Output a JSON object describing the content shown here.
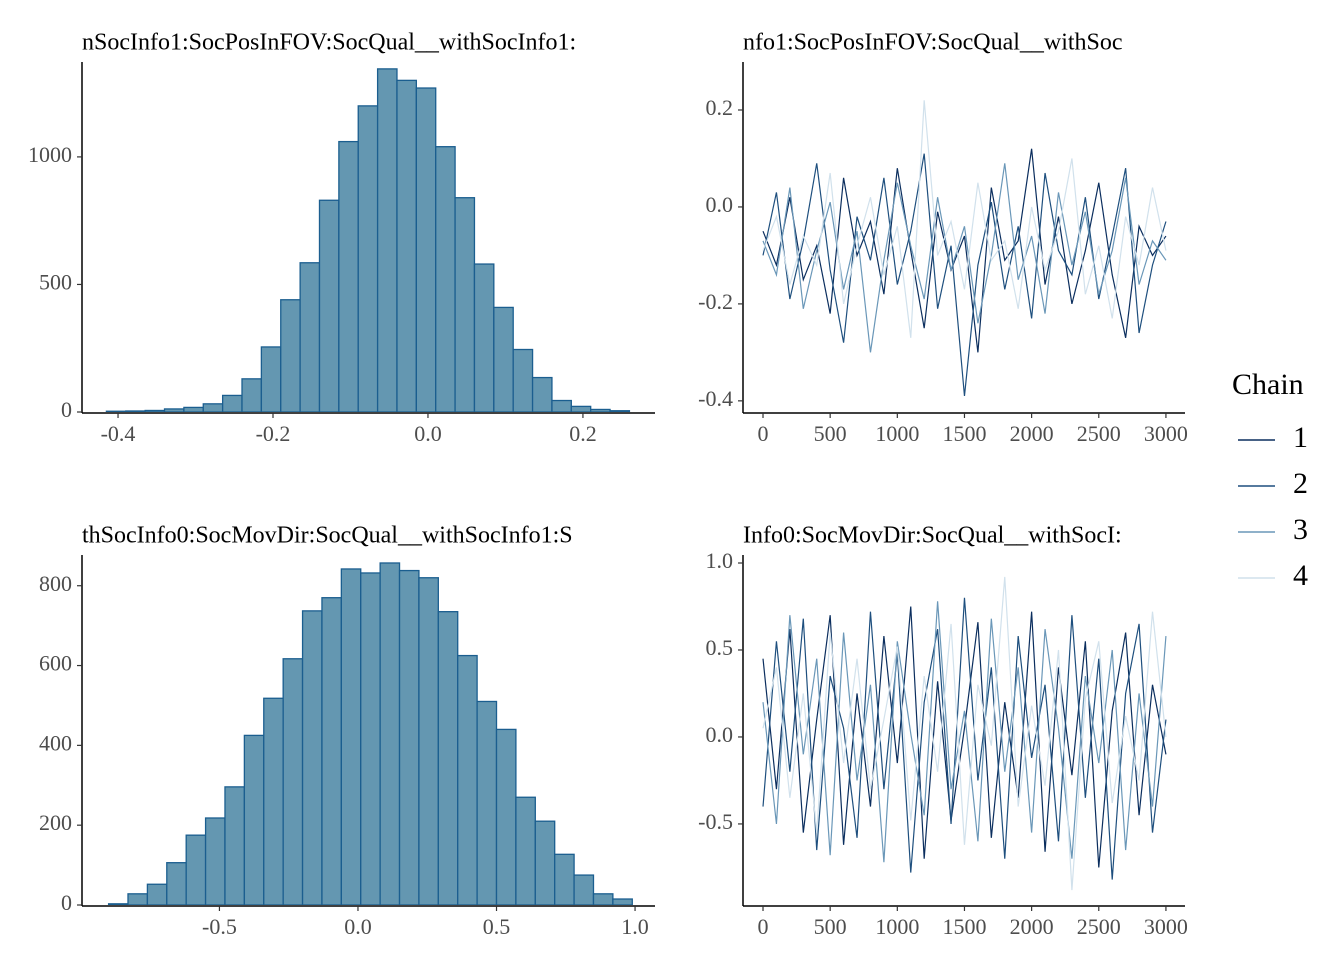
{
  "chart_data": [
    {
      "type": "histogram",
      "title": "nSocInfo1:SocPosInFOV:SocQual__withSocInfo1:",
      "color": "#6497b1",
      "edgecolor": "#1b5e8f",
      "bins": [
        -0.415,
        -0.39,
        -0.365,
        -0.34,
        -0.315,
        -0.29,
        -0.265,
        -0.24,
        -0.215,
        -0.19,
        -0.165,
        -0.14,
        -0.115,
        -0.09,
        -0.065,
        -0.04,
        -0.015,
        0.01,
        0.035,
        0.06,
        0.085,
        0.11,
        0.135,
        0.16,
        0.185,
        0.21,
        0.235,
        0.26
      ],
      "counts": [
        3,
        4,
        6,
        12,
        18,
        32,
        65,
        130,
        255,
        440,
        585,
        830,
        1060,
        1200,
        1345,
        1300,
        1270,
        1040,
        840,
        580,
        410,
        245,
        135,
        45,
        22,
        10,
        5
      ],
      "xlim": [
        -0.4465,
        0.293
      ],
      "xticks": [
        -0.4,
        -0.2,
        {
          "value": 0,
          "label": "0.0"
        },
        0.2
      ],
      "ylim": [
        0,
        1372
      ],
      "yticks": [
        0,
        500,
        1000
      ]
    },
    {
      "type": "line",
      "title": "nfo1:SocPosInFOV:SocQual__withSoc",
      "legend_title": "Chain",
      "x": [
        0,
        100,
        200,
        300,
        400,
        500,
        600,
        700,
        800,
        900,
        1000,
        1100,
        1200,
        1300,
        1400,
        1500,
        1600,
        1700,
        1800,
        1900,
        2000,
        2100,
        2200,
        2300,
        2400,
        2500,
        2600,
        2700,
        2800,
        2900,
        3000
      ],
      "series": [
        {
          "name": "1",
          "color": "#0b2e5e",
          "values": [
            -0.05,
            -0.12,
            0.02,
            -0.15,
            -0.08,
            -0.22,
            0.06,
            -0.1,
            -0.03,
            -0.18,
            0.08,
            -0.09,
            -0.25,
            -0.01,
            -0.13,
            -0.06,
            -0.3,
            0.04,
            -0.11,
            -0.07,
            0.12,
            -0.16,
            -0.02,
            -0.2,
            -0.09,
            0.05,
            -0.14,
            -0.27,
            -0.04,
            -0.1,
            -0.06
          ]
        },
        {
          "name": "2",
          "color": "#1e4f7e",
          "values": [
            -0.1,
            0.03,
            -0.19,
            -0.07,
            0.09,
            -0.13,
            -0.28,
            -0.02,
            -0.11,
            0.06,
            -0.16,
            -0.05,
            0.11,
            -0.21,
            -0.08,
            -0.39,
            -0.12,
            0.01,
            -0.17,
            -0.04,
            -0.23,
            0.07,
            -0.09,
            -0.14,
            0.02,
            -0.19,
            -0.06,
            0.08,
            -0.26,
            -0.12,
            -0.03
          ]
        },
        {
          "name": "3",
          "color": "#6a97b8",
          "values": [
            -0.07,
            -0.14,
            0.04,
            -0.21,
            -0.09,
            0.01,
            -0.17,
            -0.05,
            -0.3,
            -0.11,
            0.05,
            -0.08,
            -0.19,
            0.02,
            -0.13,
            -0.04,
            -0.24,
            -0.1,
            0.09,
            -0.15,
            -0.06,
            -0.22,
            0.03,
            -0.12,
            -0.01,
            -0.18,
            -0.09,
            0.06,
            -0.16,
            -0.07,
            -0.11
          ]
        },
        {
          "name": "4",
          "color": "#d1e1ec",
          "values": [
            -0.09,
            -0.02,
            -0.16,
            -0.06,
            -0.12,
            0.07,
            -0.2,
            -0.08,
            0.02,
            -0.14,
            -0.04,
            -0.27,
            0.22,
            -0.1,
            -0.03,
            -0.17,
            0.05,
            -0.11,
            -0.07,
            -0.21,
            0.0,
            -0.13,
            -0.05,
            0.1,
            -0.18,
            -0.08,
            -0.23,
            -0.02,
            -0.12,
            0.04,
            -0.09
          ]
        }
      ],
      "xlim": [
        -149,
        3142
      ],
      "xticks": [
        0,
        500,
        1000,
        1500,
        2000,
        2500,
        3000
      ],
      "ylim": [
        -0.423,
        0.299
      ],
      "yticks": [
        -0.4,
        -0.2,
        {
          "value": 0,
          "label": "0.0"
        },
        0.2
      ]
    },
    {
      "type": "histogram",
      "title": "thSocInfo0:SocMovDir:SocQual__withSocInfo1:S",
      "color": "#6497b1",
      "edgecolor": "#1b5e8f",
      "bins": [
        -0.9,
        -0.83,
        -0.76,
        -0.69,
        -0.62,
        -0.55,
        -0.48,
        -0.41,
        -0.34,
        -0.27,
        -0.2,
        -0.13,
        -0.06,
        0.01,
        0.08,
        0.15,
        0.22,
        0.29,
        0.36,
        0.43,
        0.5,
        0.57,
        0.64,
        0.71,
        0.78,
        0.85,
        0.92,
        0.99
      ],
      "counts": [
        3,
        28,
        52,
        106,
        175,
        218,
        296,
        425,
        518,
        617,
        737,
        770,
        842,
        832,
        857,
        838,
        820,
        735,
        625,
        510,
        440,
        270,
        210,
        127,
        75,
        28,
        15
      ],
      "xlim": [
        -0.996,
        1.072
      ],
      "xticks": [
        -0.5,
        {
          "value": 0,
          "label": "0.0"
        },
        0.5,
        {
          "value": 1,
          "label": "1.0"
        }
      ],
      "ylim": [
        0,
        877
      ],
      "yticks": [
        0,
        200,
        400,
        600,
        800
      ]
    },
    {
      "type": "line",
      "title": "Info0:SocMovDir:SocQual__withSocI:",
      "x": [
        0,
        100,
        200,
        300,
        400,
        500,
        600,
        700,
        800,
        900,
        1000,
        1100,
        1200,
        1300,
        1400,
        1500,
        1600,
        1700,
        1800,
        1900,
        2000,
        2100,
        2200,
        2300,
        2400,
        2500,
        2600,
        2700,
        2800,
        2900,
        3000
      ],
      "series": [
        {
          "name": "1",
          "color": "#0b2e5e",
          "values": [
            0.45,
            -0.3,
            0.62,
            -0.55,
            0.1,
            0.7,
            -0.62,
            0.25,
            -0.4,
            0.58,
            -0.15,
            0.75,
            -0.7,
            0.32,
            -0.48,
            0.05,
            0.66,
            -0.58,
            0.2,
            -0.35,
            0.72,
            -0.66,
            0.4,
            -0.22,
            0.55,
            -0.75,
            0.15,
            0.6,
            -0.45,
            0.3,
            -0.1
          ]
        },
        {
          "name": "2",
          "color": "#1e4f7e",
          "values": [
            -0.4,
            0.55,
            -0.2,
            0.68,
            -0.65,
            0.35,
            0.05,
            -0.58,
            0.72,
            -0.3,
            0.48,
            -0.78,
            0.2,
            0.62,
            -0.5,
            0.8,
            -0.25,
            0.4,
            -0.7,
            0.58,
            -0.12,
            0.3,
            -0.6,
            0.7,
            -0.35,
            0.45,
            -0.82,
            0.25,
            0.65,
            -0.55,
            0.1
          ]
        },
        {
          "name": "3",
          "color": "#6a97b8",
          "values": [
            0.2,
            -0.5,
            0.7,
            -0.1,
            0.45,
            -0.68,
            0.6,
            -0.25,
            0.3,
            -0.72,
            0.55,
            0.02,
            -0.45,
            0.78,
            -0.3,
            0.15,
            -0.6,
            0.68,
            -0.2,
            0.4,
            -0.55,
            0.62,
            0.05,
            -0.7,
            0.35,
            -0.15,
            0.5,
            -0.65,
            0.25,
            -0.4,
            0.58
          ]
        },
        {
          "name": "4",
          "color": "#d1e1ec",
          "values": [
            0.05,
            0.4,
            -0.35,
            0.25,
            -0.55,
            0.6,
            -0.15,
            0.45,
            -0.3,
            0.1,
            0.52,
            -0.48,
            0.35,
            -0.2,
            0.65,
            -0.62,
            0.3,
            -0.05,
            0.92,
            -0.4,
            0.18,
            -0.28,
            0.5,
            -0.88,
            0.22,
            0.55,
            -0.38,
            0.12,
            -0.25,
            0.72,
            0.0
          ]
        }
      ],
      "xlim": [
        -149,
        3142
      ],
      "xticks": [
        0,
        500,
        1000,
        1500,
        2000,
        2500,
        3000
      ],
      "ylim": [
        -0.966,
        1.046
      ],
      "yticks": [
        -0.5,
        {
          "value": 0,
          "label": "0.0"
        },
        0.5,
        {
          "value": 1,
          "label": "1.0"
        }
      ]
    }
  ]
}
